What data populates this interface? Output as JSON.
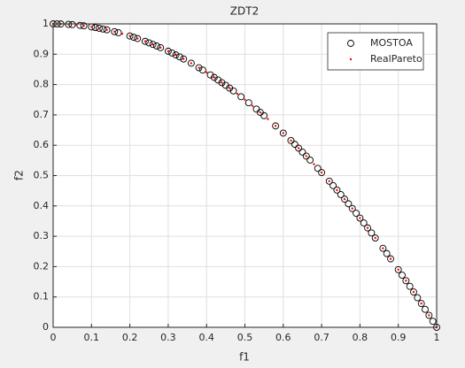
{
  "chart_data": {
    "type": "scatter",
    "title": "ZDT2",
    "x_label": "f1",
    "y_label": "f2",
    "xlim": [
      0,
      1
    ],
    "ylim": [
      0,
      1
    ],
    "xticks": [
      0,
      0.1,
      0.2,
      0.3,
      0.4,
      0.5,
      0.6,
      0.7,
      0.8,
      0.9,
      1
    ],
    "yticks": [
      0,
      0.1,
      0.2,
      0.3,
      0.4,
      0.5,
      0.6,
      0.7,
      0.8,
      0.9,
      1
    ],
    "grid": true,
    "legend": "upper-right",
    "series": [
      {
        "name": "MOSTOA",
        "color": "#000000",
        "marker": "circle",
        "x": [
          0,
          0.01,
          0.02,
          0.04,
          0.05,
          0.07,
          0.08,
          0.1,
          0.11,
          0.12,
          0.13,
          0.14,
          0.16,
          0.17,
          0.2,
          0.21,
          0.22,
          0.24,
          0.25,
          0.26,
          0.27,
          0.28,
          0.3,
          0.31,
          0.32,
          0.33,
          0.34,
          0.36,
          0.38,
          0.39,
          0.41,
          0.42,
          0.43,
          0.44,
          0.45,
          0.46,
          0.47,
          0.49,
          0.51,
          0.53,
          0.54,
          0.55,
          0.58,
          0.6,
          0.62,
          0.63,
          0.64,
          0.65,
          0.66,
          0.67,
          0.69,
          0.7,
          0.72,
          0.73,
          0.74,
          0.75,
          0.76,
          0.77,
          0.78,
          0.79,
          0.8,
          0.81,
          0.82,
          0.83,
          0.84,
          0.86,
          0.87,
          0.88,
          0.9,
          0.91,
          0.92,
          0.93,
          0.94,
          0.95,
          0.96,
          0.97,
          0.98,
          0.99,
          1
        ],
        "values": [
          1,
          0.9999,
          0.9996,
          0.9984,
          0.9975,
          0.9951,
          0.9936,
          0.99,
          0.9879,
          0.9856,
          0.9831,
          0.9804,
          0.9744,
          0.9711,
          0.96,
          0.9559,
          0.9516,
          0.9424,
          0.9375,
          0.9324,
          0.9271,
          0.9216,
          0.91,
          0.9039,
          0.8976,
          0.8911,
          0.8844,
          0.8704,
          0.8556,
          0.8479,
          0.8319,
          0.8236,
          0.8151,
          0.8064,
          0.7975,
          0.7884,
          0.7791,
          0.7599,
          0.7399,
          0.7191,
          0.7084,
          0.6975,
          0.6636,
          0.64,
          0.6156,
          0.6031,
          0.5904,
          0.5775,
          0.5644,
          0.5511,
          0.5239,
          0.51,
          0.4816,
          0.4671,
          0.4524,
          0.4375,
          0.4224,
          0.4071,
          0.3916,
          0.3759,
          0.36,
          0.3439,
          0.3276,
          0.3111,
          0.2944,
          0.2604,
          0.2431,
          0.2256,
          0.19,
          0.1719,
          0.1536,
          0.1351,
          0.1164,
          0.0975,
          0.0784,
          0.0591,
          0.0396,
          0.0199,
          0
        ]
      },
      {
        "name": "RealPareto",
        "color": "#ff0000",
        "marker": "dot",
        "x": [
          0,
          0.02,
          0.04,
          0.06,
          0.08,
          0.1,
          0.12,
          0.14,
          0.16,
          0.18,
          0.2,
          0.22,
          0.24,
          0.26,
          0.28,
          0.3,
          0.32,
          0.34,
          0.36,
          0.38,
          0.4,
          0.42,
          0.44,
          0.46,
          0.48,
          0.5,
          0.52,
          0.54,
          0.56,
          0.58,
          0.6,
          0.62,
          0.64,
          0.66,
          0.68,
          0.7,
          0.72,
          0.74,
          0.76,
          0.78,
          0.8,
          0.82,
          0.84,
          0.86,
          0.88,
          0.9,
          0.92,
          0.94,
          0.96,
          0.98,
          1
        ],
        "values": [
          1,
          0.9996,
          0.9984,
          0.9964,
          0.9936,
          0.99,
          0.9856,
          0.9804,
          0.9744,
          0.9676,
          0.96,
          0.9516,
          0.9424,
          0.9324,
          0.9216,
          0.91,
          0.8976,
          0.8844,
          0.8704,
          0.8556,
          0.84,
          0.8236,
          0.8064,
          0.7884,
          0.7696,
          0.75,
          0.7296,
          0.7084,
          0.6864,
          0.6636,
          0.64,
          0.6156,
          0.5904,
          0.5644,
          0.5376,
          0.51,
          0.4816,
          0.4524,
          0.4224,
          0.3916,
          0.36,
          0.3276,
          0.2944,
          0.2604,
          0.2256,
          0.19,
          0.1536,
          0.1164,
          0.0784,
          0.0396,
          0
        ]
      }
    ]
  }
}
